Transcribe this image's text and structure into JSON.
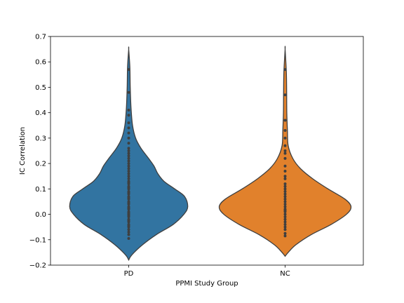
{
  "chart_data": {
    "type": "violin",
    "title": "",
    "xlabel": "PPMI Study Group",
    "ylabel": "IC Correlation",
    "ylim": [
      -0.2,
      0.7
    ],
    "yticks": [
      -0.2,
      -0.1,
      0.0,
      0.1,
      0.2,
      0.3,
      0.4,
      0.5,
      0.6,
      0.7
    ],
    "ytick_labels": [
      "−0.2",
      "−0.1",
      "0.0",
      "0.1",
      "0.2",
      "0.3",
      "0.4",
      "0.5",
      "0.6",
      "0.7"
    ],
    "categories": [
      "PD",
      "NC"
    ],
    "grid": false,
    "series": [
      {
        "name": "PD",
        "color": "#3274a1",
        "density_profile": [
          {
            "y": -0.18,
            "half_width": 0.0
          },
          {
            "y": -0.16,
            "half_width": 0.04
          },
          {
            "y": -0.12,
            "half_width": 0.18
          },
          {
            "y": -0.08,
            "half_width": 0.36
          },
          {
            "y": -0.04,
            "half_width": 0.58
          },
          {
            "y": 0.0,
            "half_width": 0.72
          },
          {
            "y": 0.03,
            "half_width": 0.77
          },
          {
            "y": 0.07,
            "half_width": 0.73
          },
          {
            "y": 0.1,
            "half_width": 0.6
          },
          {
            "y": 0.13,
            "half_width": 0.46
          },
          {
            "y": 0.16,
            "half_width": 0.38
          },
          {
            "y": 0.19,
            "half_width": 0.33
          },
          {
            "y": 0.22,
            "half_width": 0.26
          },
          {
            "y": 0.26,
            "half_width": 0.16
          },
          {
            "y": 0.3,
            "half_width": 0.09
          },
          {
            "y": 0.35,
            "half_width": 0.05
          },
          {
            "y": 0.42,
            "half_width": 0.03
          },
          {
            "y": 0.5,
            "half_width": 0.02
          },
          {
            "y": 0.58,
            "half_width": 0.015
          },
          {
            "y": 0.65,
            "half_width": 0.0
          }
        ],
        "points": [
          -0.095,
          -0.08,
          -0.07,
          -0.06,
          -0.05,
          -0.045,
          -0.04,
          -0.03,
          -0.025,
          -0.02,
          -0.01,
          -0.005,
          0.0,
          0.005,
          0.01,
          0.02,
          0.025,
          0.03,
          0.04,
          0.045,
          0.05,
          0.06,
          0.065,
          0.07,
          0.08,
          0.085,
          0.09,
          0.1,
          0.105,
          0.11,
          0.12,
          0.125,
          0.13,
          0.14,
          0.15,
          0.16,
          0.17,
          0.18,
          0.19,
          0.2,
          0.21,
          0.22,
          0.23,
          0.24,
          0.25,
          0.26,
          0.28,
          0.3,
          0.32,
          0.34,
          0.36,
          0.39,
          0.41,
          0.48,
          0.57
        ]
      },
      {
        "name": "NC",
        "color": "#e1812c",
        "density_profile": [
          {
            "y": -0.165,
            "half_width": 0.0
          },
          {
            "y": -0.15,
            "half_width": 0.04
          },
          {
            "y": -0.12,
            "half_width": 0.14
          },
          {
            "y": -0.08,
            "half_width": 0.34
          },
          {
            "y": -0.04,
            "half_width": 0.6
          },
          {
            "y": 0.0,
            "half_width": 0.8
          },
          {
            "y": 0.03,
            "half_width": 0.86
          },
          {
            "y": 0.06,
            "half_width": 0.78
          },
          {
            "y": 0.1,
            "half_width": 0.56
          },
          {
            "y": 0.14,
            "half_width": 0.36
          },
          {
            "y": 0.18,
            "half_width": 0.2
          },
          {
            "y": 0.22,
            "half_width": 0.1
          },
          {
            "y": 0.27,
            "half_width": 0.04
          },
          {
            "y": 0.33,
            "half_width": 0.03
          },
          {
            "y": 0.4,
            "half_width": 0.022
          },
          {
            "y": 0.48,
            "half_width": 0.02
          },
          {
            "y": 0.56,
            "half_width": 0.016
          },
          {
            "y": 0.65,
            "half_width": 0.0
          }
        ],
        "points": [
          -0.085,
          -0.075,
          -0.06,
          -0.05,
          -0.04,
          -0.03,
          -0.02,
          -0.01,
          0.0,
          0.01,
          0.015,
          0.02,
          0.03,
          0.04,
          0.05,
          0.06,
          0.07,
          0.08,
          0.09,
          0.1,
          0.11,
          0.12,
          0.14,
          0.15,
          0.17,
          0.19,
          0.22,
          0.24,
          0.25,
          0.27,
          0.3,
          0.33,
          0.37,
          0.47,
          0.57
        ]
      }
    ]
  }
}
